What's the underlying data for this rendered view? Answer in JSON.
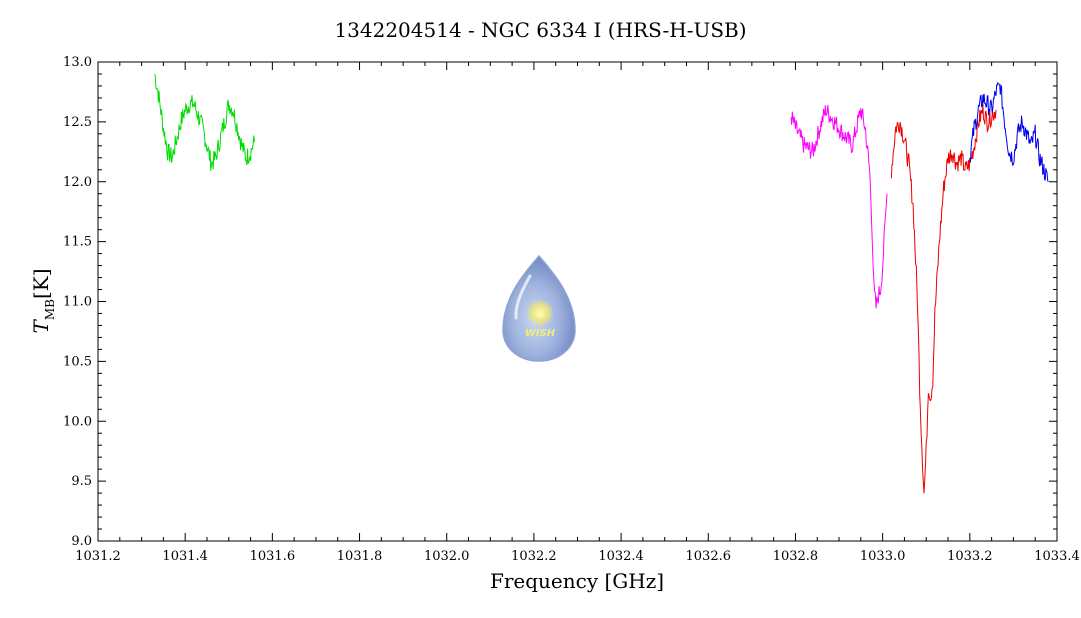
{
  "chart_data": {
    "type": "line",
    "title": "1342204514 - NGC 6334 I (HRS-H-USB)",
    "xlabel": "Frequency [GHz]",
    "ylabel_main": "T",
    "ylabel_sub": "MB",
    "ylabel_unit": "[K]",
    "xlim": [
      1031.2,
      1033.4
    ],
    "ylim": [
      9.0,
      13.0
    ],
    "x_ticks": [
      "1031.2",
      "1031.4",
      "1031.6",
      "1031.8",
      "1032.0",
      "1032.2",
      "1032.4",
      "1032.6",
      "1032.8",
      "1033.0",
      "1033.2",
      "1033.4"
    ],
    "y_ticks": [
      "9.0",
      "9.5",
      "10.0",
      "10.5",
      "11.0",
      "11.5",
      "12.0",
      "12.5",
      "13.0"
    ],
    "logo_text": "WISH",
    "series": [
      {
        "color": "#00dd00",
        "x": [
          1031.33,
          1031.34,
          1031.35,
          1031.36,
          1031.37,
          1031.38,
          1031.39,
          1031.4,
          1031.41,
          1031.42,
          1031.43,
          1031.44,
          1031.45,
          1031.46,
          1031.47,
          1031.48,
          1031.49,
          1031.5,
          1031.51,
          1031.52,
          1031.53,
          1031.54,
          1031.55,
          1031.56
        ],
        "y": [
          12.9,
          12.7,
          12.45,
          12.25,
          12.2,
          12.35,
          12.5,
          12.6,
          12.65,
          12.65,
          12.55,
          12.45,
          12.3,
          12.15,
          12.2,
          12.35,
          12.5,
          12.65,
          12.6,
          12.45,
          12.3,
          12.2,
          12.25,
          12.35
        ]
      },
      {
        "color": "#ff00ff",
        "x": [
          1032.79,
          1032.8,
          1032.82,
          1032.84,
          1032.86,
          1032.87,
          1032.88,
          1032.9,
          1032.92,
          1032.93,
          1032.94,
          1032.95,
          1032.96,
          1032.97,
          1032.975,
          1032.98,
          1032.985,
          1032.99,
          1032.995,
          1033.0,
          1033.005,
          1033.01
        ],
        "y": [
          12.55,
          12.45,
          12.3,
          12.25,
          12.5,
          12.6,
          12.55,
          12.45,
          12.35,
          12.3,
          12.45,
          12.6,
          12.45,
          12.1,
          11.7,
          11.1,
          10.95,
          11.05,
          11.1,
          11.3,
          11.6,
          11.9
        ]
      },
      {
        "color": "#ee0000",
        "x": [
          1033.02,
          1033.03,
          1033.04,
          1033.05,
          1033.06,
          1033.07,
          1033.08,
          1033.085,
          1033.09,
          1033.095,
          1033.1,
          1033.105,
          1033.11,
          1033.115,
          1033.12,
          1033.13,
          1033.14,
          1033.15,
          1033.16,
          1033.17,
          1033.18,
          1033.19,
          1033.2,
          1033.21,
          1033.22,
          1033.23,
          1033.24,
          1033.25,
          1033.26
        ],
        "y": [
          12.1,
          12.45,
          12.5,
          12.35,
          12.15,
          11.8,
          11.0,
          10.3,
          9.8,
          9.4,
          9.75,
          10.3,
          10.2,
          10.35,
          10.9,
          11.5,
          11.95,
          12.2,
          12.25,
          12.15,
          12.2,
          12.1,
          12.15,
          12.3,
          12.5,
          12.6,
          12.5,
          12.55,
          12.6
        ]
      },
      {
        "color": "#0000ee",
        "x": [
          1033.2,
          1033.21,
          1033.22,
          1033.23,
          1033.24,
          1033.25,
          1033.26,
          1033.27,
          1033.28,
          1033.29,
          1033.3,
          1033.31,
          1033.32,
          1033.33,
          1033.34,
          1033.35,
          1033.36,
          1033.37,
          1033.38
        ],
        "y": [
          12.2,
          12.45,
          12.6,
          12.7,
          12.65,
          12.6,
          12.75,
          12.8,
          12.5,
          12.25,
          12.2,
          12.4,
          12.5,
          12.4,
          12.3,
          12.4,
          12.2,
          12.1,
          12.0
        ]
      }
    ]
  }
}
